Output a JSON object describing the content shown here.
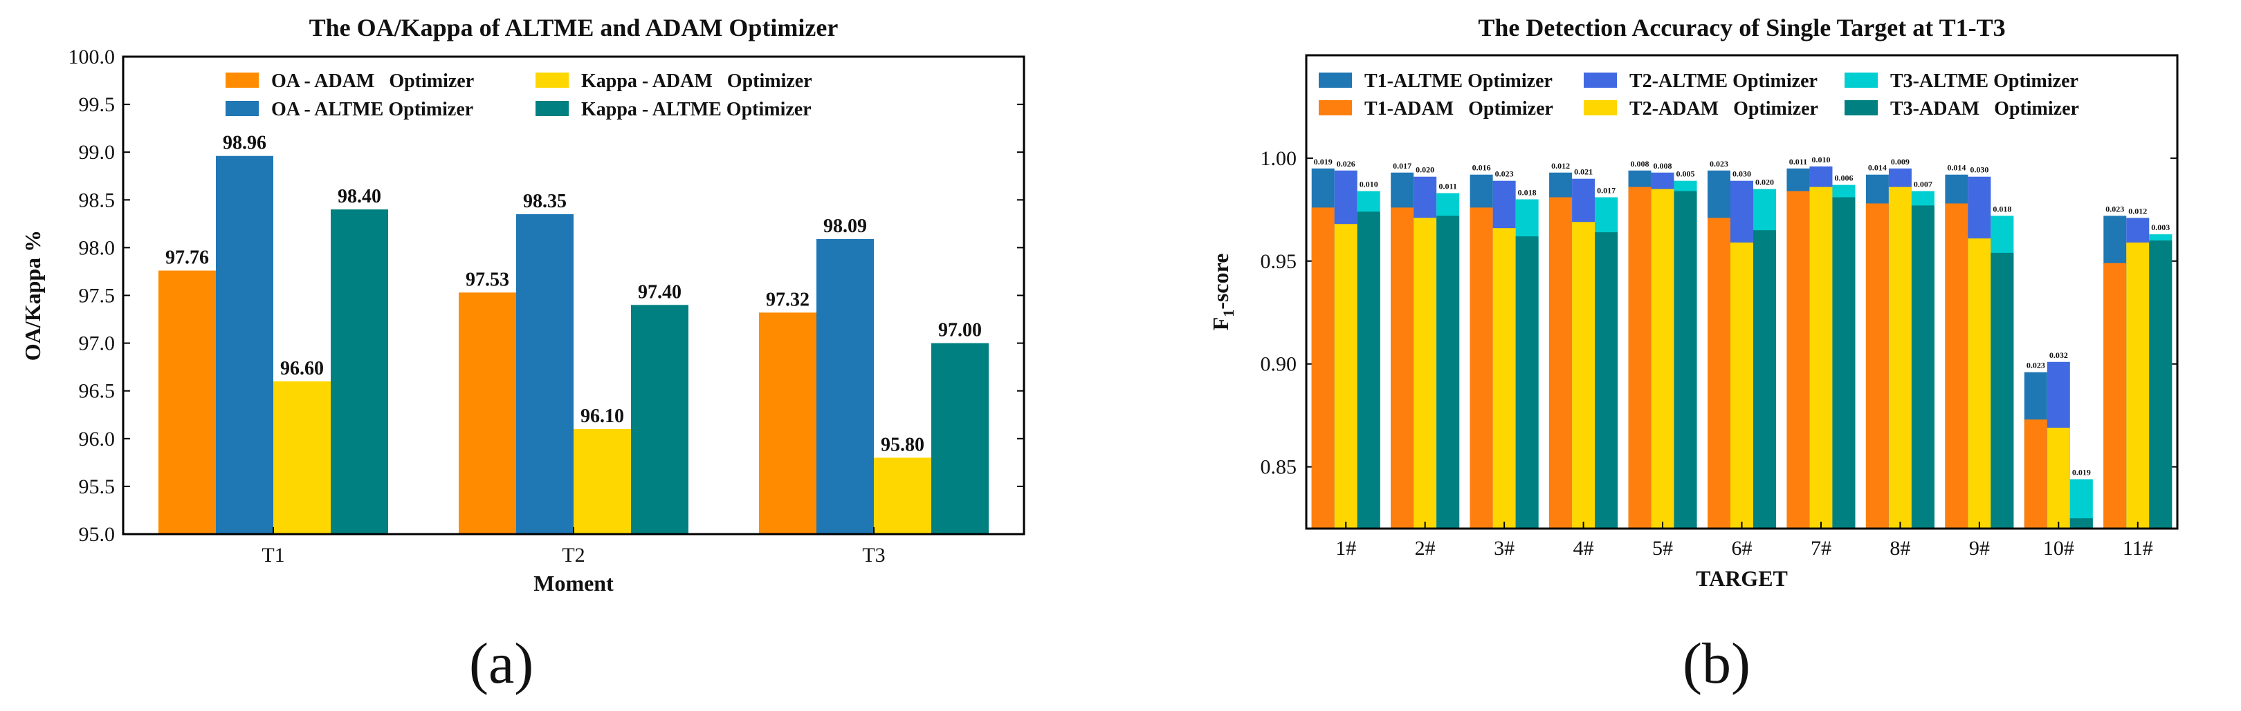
{
  "chart_data": [
    {
      "type": "bar",
      "title": "The OA/Kappa of ALTME and ADAM Optimizer",
      "xlabel": "Moment",
      "ylabel": "OA/Kappa %",
      "ylim": [
        95.0,
        100.0
      ],
      "yticks": [
        95.0,
        95.5,
        96.0,
        96.5,
        97.0,
        97.5,
        98.0,
        98.5,
        99.0,
        99.5,
        100.0
      ],
      "categories": [
        "T1",
        "T2",
        "T3"
      ],
      "legend_position": "top",
      "series": [
        {
          "name": "OA - ADAM   Optimizer",
          "color": "#FF8C00",
          "values": [
            97.76,
            97.53,
            97.32
          ],
          "labels": [
            "97.76",
            "97.53",
            "97.32"
          ]
        },
        {
          "name": "OA - ALTME Optimizer",
          "color": "#1F77B4",
          "values": [
            98.96,
            98.35,
            98.09
          ],
          "labels": [
            "98.96",
            "98.35",
            "98.09"
          ]
        },
        {
          "name": "Kappa - ADAM   Optimizer",
          "color": "#FFD700",
          "values": [
            96.6,
            96.1,
            95.8
          ],
          "labels": [
            "96.60",
            "96.10",
            "95.80"
          ]
        },
        {
          "name": "Kappa - ALTME Optimizer",
          "color": "#008080",
          "values": [
            98.4,
            97.4,
            97.0
          ],
          "labels": [
            "98.40",
            "97.40",
            "97.00"
          ]
        }
      ],
      "legend_order": [
        0,
        2,
        1,
        3
      ],
      "panel_label": "(a)"
    },
    {
      "type": "bar",
      "title": "The Detection Accuracy of Single Target at T1-T3",
      "xlabel": "TARGET",
      "ylabel": "F1-score",
      "ylabel_main": "F",
      "ylabel_sub": "1",
      "ylabel_rest": "-score",
      "ylim": [
        0.82,
        1.05
      ],
      "yticks": [
        0.85,
        0.9,
        0.95,
        1.0
      ],
      "ytick_labels": [
        "0.85",
        "0.90",
        "0.95",
        "1.00"
      ],
      "categories": [
        "1#",
        "2#",
        "3#",
        "4#",
        "5#",
        "6#",
        "7#",
        "8#",
        "9#",
        "10#",
        "11#"
      ],
      "legend_position": "top",
      "series": [
        {
          "name": "T1-ADAM   Optimizer",
          "color": "#FF7F0E",
          "values": [
            0.976,
            0.976,
            0.976,
            0.981,
            0.986,
            0.971,
            0.984,
            0.978,
            0.978,
            0.873,
            0.949
          ]
        },
        {
          "name": "T1-ALTME Optimizer",
          "color": "#1F77B4",
          "values": [
            0.995,
            0.993,
            0.992,
            0.993,
            0.994,
            0.994,
            0.995,
            0.992,
            0.992,
            0.896,
            0.972
          ]
        },
        {
          "name": "T2-ADAM   Optimizer",
          "color": "#FFD700",
          "values": [
            0.968,
            0.971,
            0.966,
            0.969,
            0.985,
            0.959,
            0.986,
            0.986,
            0.961,
            0.869,
            0.959
          ]
        },
        {
          "name": "T2-ALTME Optimizer",
          "color": "#4169E1",
          "values": [
            0.994,
            0.991,
            0.989,
            0.99,
            0.993,
            0.989,
            0.996,
            0.995,
            0.991,
            0.901,
            0.971
          ]
        },
        {
          "name": "T3-ADAM   Optimizer",
          "color": "#008080",
          "values": [
            0.974,
            0.972,
            0.962,
            0.964,
            0.984,
            0.965,
            0.981,
            0.977,
            0.954,
            0.825,
            0.96
          ]
        },
        {
          "name": "T3-ALTME Optimizer",
          "color": "#00CED1",
          "values": [
            0.984,
            0.983,
            0.98,
            0.981,
            0.989,
            0.985,
            0.987,
            0.984,
            0.972,
            0.844,
            0.963
          ]
        }
      ],
      "diff_labels": [
        [
          "0.019",
          "0.026",
          "0.010"
        ],
        [
          "0.017",
          "0.020",
          "0.011"
        ],
        [
          "0.016",
          "0.023",
          "0.018"
        ],
        [
          "0.012",
          "0.021",
          "0.017"
        ],
        [
          "0.008",
          "0.008",
          "0.005"
        ],
        [
          "0.023",
          "0.030",
          "0.020"
        ],
        [
          "0.011",
          "0.010",
          "0.006"
        ],
        [
          "0.014",
          "0.009",
          "0.007"
        ],
        [
          "0.014",
          "0.030",
          "0.018"
        ],
        [
          "0.023",
          "0.032",
          "0.019"
        ],
        [
          "0.023",
          "0.012",
          "0.003"
        ]
      ],
      "legend_items": [
        [
          "T1-ALTME Optimizer",
          "#1F77B4"
        ],
        [
          "T2-ALTME Optimizer",
          "#4169E1"
        ],
        [
          "T3-ALTME Optimizer",
          "#00CED1"
        ],
        [
          "T1-ADAM   Optimizer",
          "#FF7F0E"
        ],
        [
          "T2-ADAM   Optimizer",
          "#FFD700"
        ],
        [
          "T3-ADAM   Optimizer",
          "#008080"
        ]
      ],
      "panel_label": "(b)"
    }
  ]
}
